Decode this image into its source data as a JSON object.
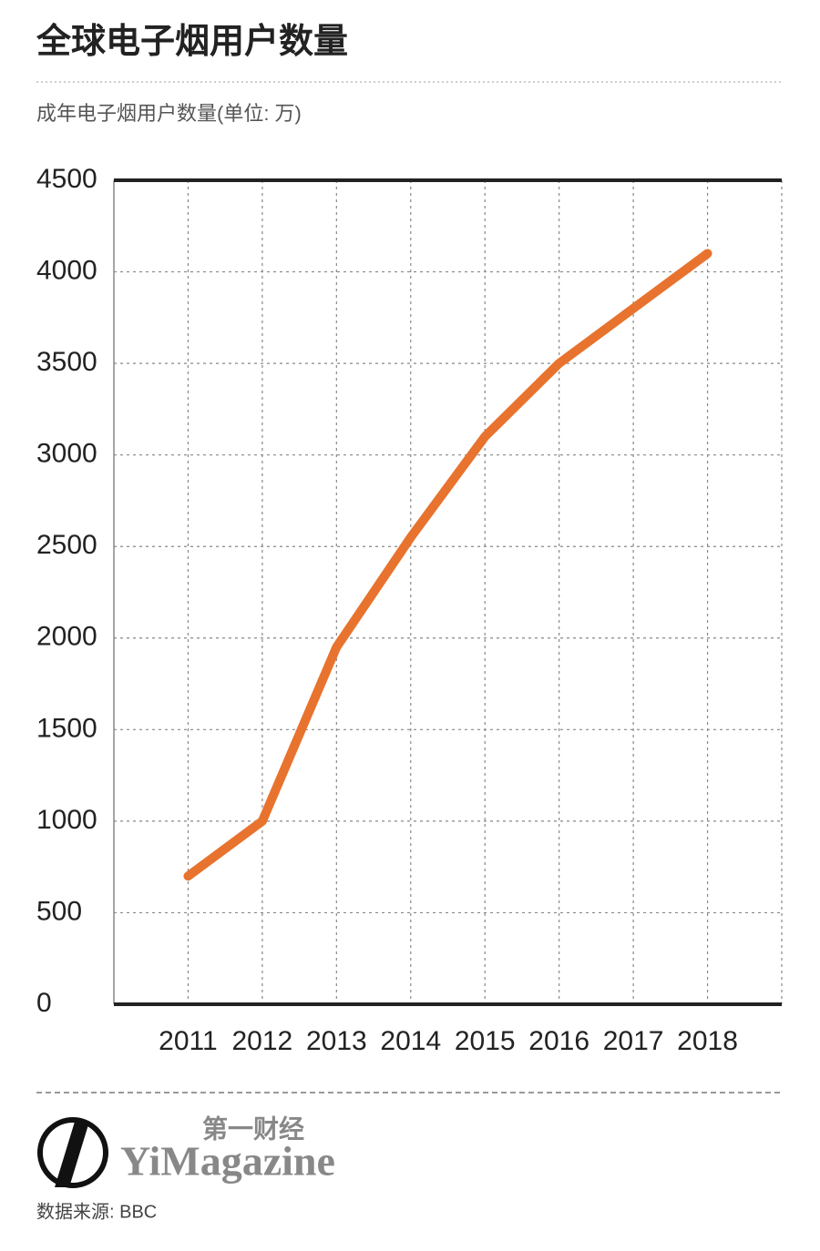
{
  "chart_data": {
    "type": "line",
    "title": "全球电子烟用户数量",
    "subtitle": "成年电子烟用户数量(单位: 万)",
    "categories": [
      "2011",
      "2012",
      "2013",
      "2014",
      "2015",
      "2016",
      "2017",
      "2018"
    ],
    "values": [
      700,
      1000,
      1950,
      2550,
      3100,
      3500,
      3800,
      4100
    ],
    "color": "#e8732e",
    "ylim": [
      0,
      4500
    ],
    "yticks": [
      0,
      500,
      1000,
      1500,
      2000,
      2500,
      3000,
      3500,
      4000,
      4500
    ],
    "grid": true
  },
  "footer": {
    "brand_cn": "第一财经",
    "brand_en": "YiMagazine",
    "source": "数据来源: BBC"
  }
}
